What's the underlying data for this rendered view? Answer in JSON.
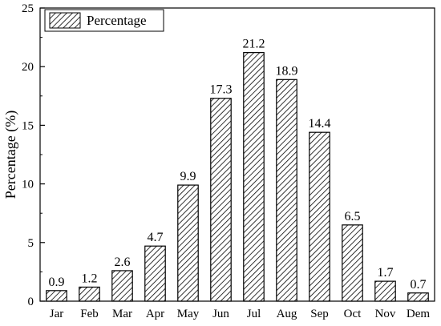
{
  "chart_data": {
    "type": "bar",
    "categories": [
      "Jar",
      "Feb",
      "Mar",
      "Apr",
      "May",
      "Jun",
      "Jul",
      "Aug",
      "Sep",
      "Oct",
      "Nov",
      "Dem"
    ],
    "series": [
      {
        "name": "Percentage",
        "values": [
          0.9,
          1.2,
          2.6,
          4.7,
          9.9,
          17.3,
          21.2,
          18.9,
          14.4,
          6.5,
          1.7,
          0.7
        ]
      }
    ],
    "data_labels": [
      "0.9",
      "1.2",
      "2.6",
      "4.7",
      "9.9",
      "17.3",
      "21.2",
      "18.9",
      "14.4",
      "6.5",
      "1.7",
      "0.7"
    ],
    "ylabel": "Percentage (%)",
    "xlabel": "",
    "ylim": [
      0,
      25
    ],
    "yticks": [
      "0",
      "5",
      "10",
      "15",
      "20",
      "25"
    ],
    "legend": {
      "label": "Percentage",
      "position": "top-left"
    },
    "bar_fill": "hatched",
    "grid": false
  }
}
